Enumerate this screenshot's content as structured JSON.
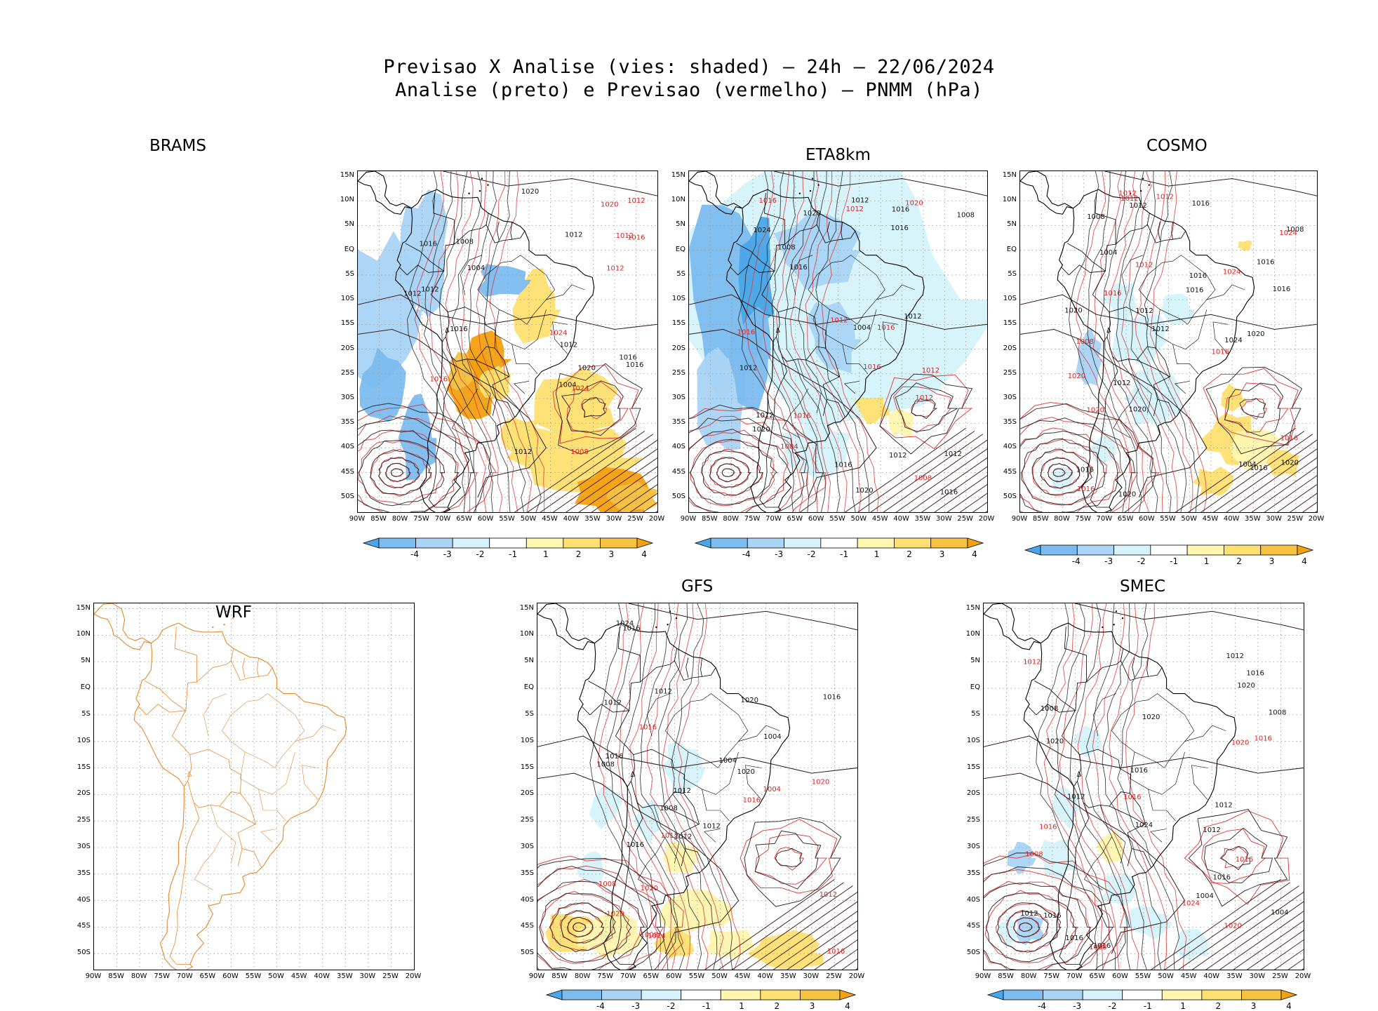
{
  "header": {
    "line1": "Previsao X Analise (vies: shaded) — 24h — 22/06/2024",
    "line2": "Analise (preto) e Previsao (vermelho) — PNMM (hPa)"
  },
  "axes": {
    "lat_labels": [
      "15N",
      "10N",
      "5N",
      "EQ",
      "5S",
      "10S",
      "15S",
      "20S",
      "25S",
      "30S",
      "35S",
      "40S",
      "45S",
      "50S"
    ],
    "lon_labels": [
      "90W",
      "85W",
      "80W",
      "75W",
      "70W",
      "65W",
      "60W",
      "55W",
      "50W",
      "45W",
      "40W",
      "35W",
      "30W",
      "25W",
      "20W"
    ]
  },
  "colorbar": {
    "ticks": [
      "-4",
      "-3",
      "-2",
      "-1",
      "1",
      "2",
      "3",
      "4"
    ],
    "colors": [
      "#4aa6e8",
      "#7cbcef",
      "#a9d4f5",
      "#d6f3fb",
      "#ffffff",
      "#fff6b0",
      "#ffe070",
      "#f5c242",
      "#f4a00f"
    ]
  },
  "panels": [
    {
      "id": "brams",
      "title": "BRAMS",
      "labels": {
        "analysis": [
          "1016",
          "1012",
          "1012",
          "1016",
          "1012",
          "1004",
          "1004",
          "1016",
          "1012",
          "1008",
          "1012",
          "1016",
          "1020",
          "1020"
        ],
        "forecast": [
          "1016",
          "1012",
          "1012",
          "1016",
          "1008",
          "1024",
          "1024",
          "1020",
          "1012"
        ]
      }
    },
    {
      "id": "eta8km",
      "title": "ETA8km",
      "labels": {
        "analysis": [
          "1016",
          "1012",
          "1012",
          "1012",
          "1016",
          "1016",
          "1012",
          "1020",
          "1020",
          "1008",
          "1004",
          "1024",
          "1012",
          "1016",
          "1012",
          "1008",
          "1020",
          "1016"
        ],
        "forecast": [
          "1012",
          "1012",
          "1008",
          "1016",
          "1012",
          "1020",
          "1016",
          "1016",
          "1012",
          "1004",
          "1016",
          "1016"
        ]
      }
    },
    {
      "id": "cosmo",
      "title": "COSMO",
      "labels": {
        "analysis": [
          "1012",
          "1016",
          "1012",
          "1016",
          "1020",
          "1024",
          "1016",
          "1020",
          "1012",
          "1004",
          "1016",
          "1008",
          "1020",
          "1020",
          "1016",
          "1008",
          "1004",
          "1012",
          "1016",
          "1020",
          "1016"
        ],
        "forecast": [
          "1012",
          "1016",
          "1012",
          "1016",
          "1024",
          "1012",
          "1020",
          "1016",
          "1012",
          "1008",
          "1020",
          "1016",
          "1024"
        ]
      }
    },
    {
      "id": "wrf",
      "title": "WRF",
      "labels": {
        "analysis": [],
        "forecast": []
      }
    },
    {
      "id": "gfs",
      "title": "GFS",
      "labels": {
        "analysis": [
          "1012",
          "1012",
          "1020",
          "1016",
          "1012",
          "1004",
          "1008",
          "1004",
          "1016",
          "1012",
          "1020",
          "1024",
          "1008",
          "1012",
          "1016",
          "1016"
        ],
        "forecast": [
          "1016",
          "1012",
          "1008",
          "1016",
          "1012",
          "1016",
          "1020",
          "1024",
          "1004",
          "1008",
          "1020",
          "1020"
        ]
      }
    },
    {
      "id": "smec",
      "title": "SMEC",
      "labels": {
        "analysis": [
          "1016",
          "1012",
          "1016",
          "1012",
          "1020",
          "1016",
          "1016",
          "1012",
          "1004",
          "1008",
          "1004",
          "1016",
          "1020",
          "1024",
          "1012",
          "1008",
          "1020",
          "1016",
          "1012"
        ],
        "forecast": [
          "1016",
          "1012",
          "1008",
          "1016",
          "1020",
          "1024",
          "1016",
          "1008",
          "1020",
          "1016"
        ]
      }
    }
  ]
}
